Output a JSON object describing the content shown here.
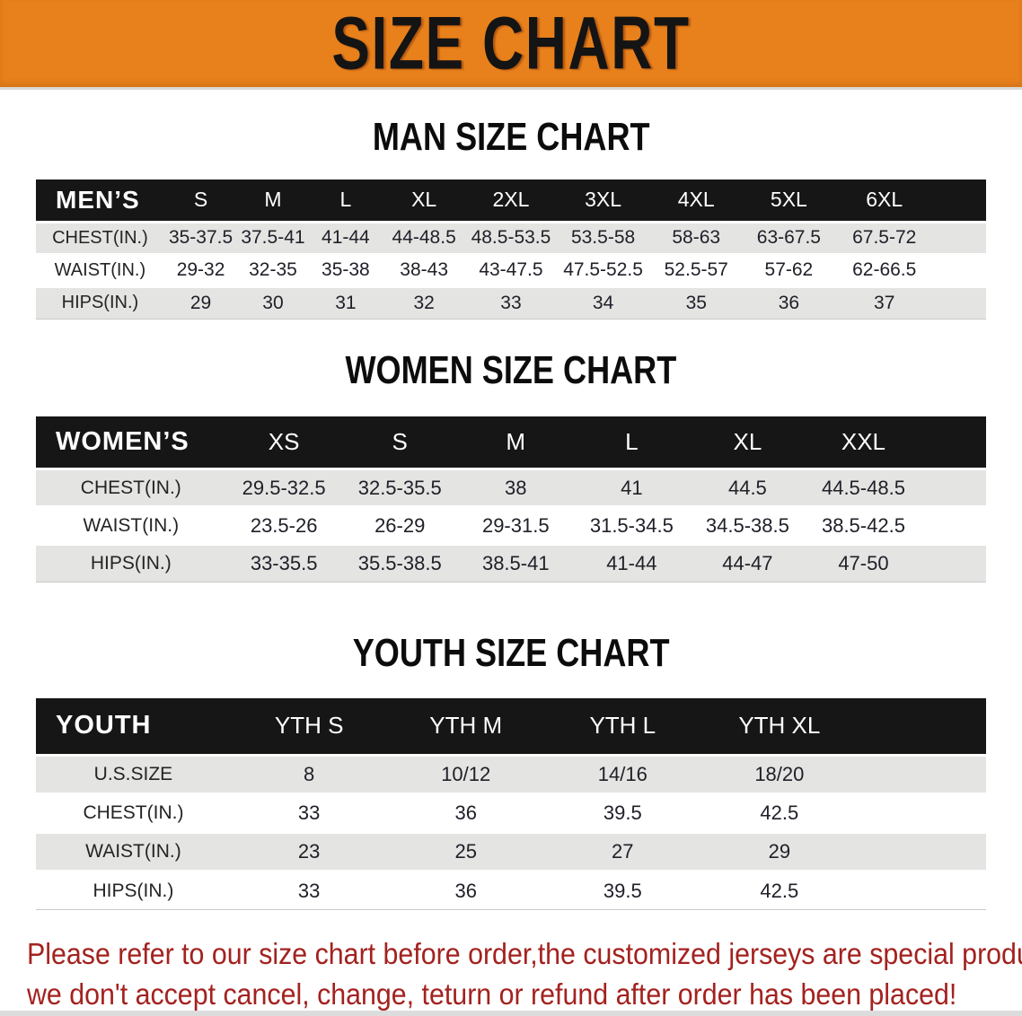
{
  "banner": {
    "title": "SIZE CHART"
  },
  "colors": {
    "banner_bg": "#e8811c",
    "header_bar": "#161616",
    "row_stripe": "#e4e4e2",
    "footer_text": "#a3221f"
  },
  "sections": [
    {
      "id": "men",
      "title": "MAN SIZE CHART",
      "table": {
        "header": {
          "label": "MEN’S",
          "sizes": [
            "S",
            "M",
            "L",
            "XL",
            "2XL",
            "3XL",
            "4XL",
            "5XL",
            "6XL"
          ]
        },
        "rows": [
          {
            "label": "CHEST(IN.)",
            "values": [
              "35-37.5",
              "37.5-41",
              "41-44",
              "44-48.5",
              "48.5-53.5",
              "53.5-58",
              "58-63",
              "63-67.5",
              "67.5-72"
            ]
          },
          {
            "label": "WAIST(IN.)",
            "values": [
              "29-32",
              "32-35",
              "35-38",
              "38-43",
              "43-47.5",
              "47.5-52.5",
              "52.5-57",
              "57-62",
              "62-66.5"
            ]
          },
          {
            "label": "HIPS(IN.)",
            "values": [
              "29",
              "30",
              "31",
              "32",
              "33",
              "34",
              "35",
              "36",
              "37"
            ]
          }
        ]
      }
    },
    {
      "id": "women",
      "title": "WOMEN SIZE CHART",
      "table": {
        "header": {
          "label": "WOMEN’S",
          "sizes": [
            "XS",
            "S",
            "M",
            "L",
            "XL",
            "XXL"
          ]
        },
        "rows": [
          {
            "label": "CHEST(IN.)",
            "values": [
              "29.5-32.5",
              "32.5-35.5",
              "38",
              "41",
              "44.5",
              "44.5-48.5"
            ]
          },
          {
            "label": "WAIST(IN.)",
            "values": [
              "23.5-26",
              "26-29",
              "29-31.5",
              "31.5-34.5",
              "34.5-38.5",
              "38.5-42.5"
            ]
          },
          {
            "label": "HIPS(IN.)",
            "values": [
              "33-35.5",
              "35.5-38.5",
              "38.5-41",
              "41-44",
              "44-47",
              "47-50"
            ]
          }
        ]
      }
    },
    {
      "id": "youth",
      "title": "YOUTH SIZE CHART",
      "table": {
        "header": {
          "label": "YOUTH",
          "sizes": [
            "YTH S",
            "YTH M",
            "YTH L",
            "YTH XL"
          ]
        },
        "rows": [
          {
            "label": "U.S.SIZE",
            "values": [
              "8",
              "10/12",
              "14/16",
              "18/20"
            ]
          },
          {
            "label": "CHEST(IN.)",
            "values": [
              "33",
              "36",
              "39.5",
              "42.5"
            ]
          },
          {
            "label": "WAIST(IN.)",
            "values": [
              "23",
              "25",
              "27",
              "29"
            ]
          },
          {
            "label": "HIPS(IN.)",
            "values": [
              "33",
              "36",
              "39.5",
              "42.5"
            ]
          }
        ]
      }
    }
  ],
  "footer": {
    "lines": [
      "Please refer to our size chart before order,the customized jerseys are special products,",
      "we don't accept cancel, change, teturn or refund after order has been placed!"
    ]
  }
}
